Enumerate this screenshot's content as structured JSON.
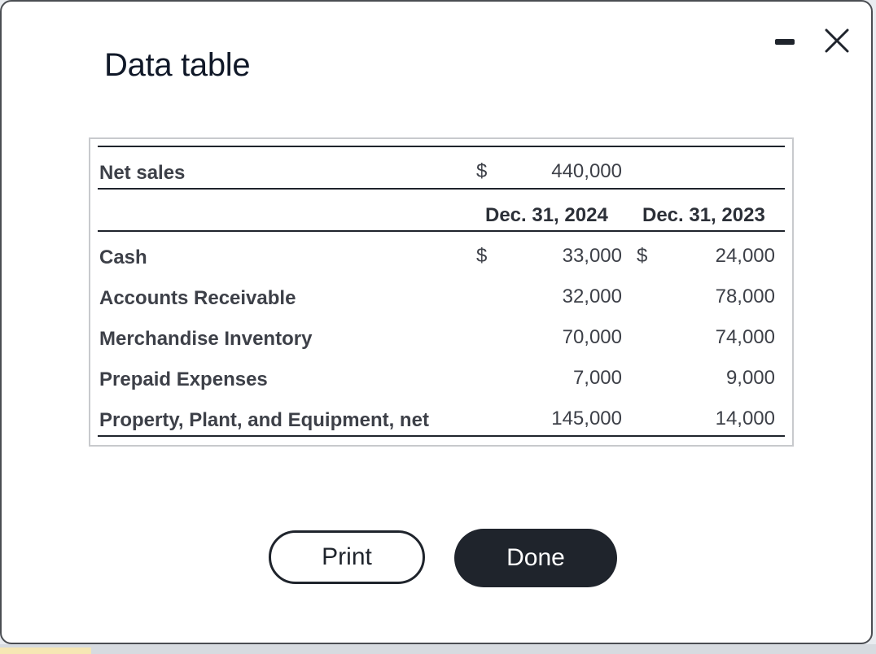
{
  "dialog": {
    "title": "Data table",
    "minimize_icon": "minimize-icon",
    "close_icon": "close-icon"
  },
  "table": {
    "net_sales": {
      "label": "Net sales",
      "currency": "$",
      "value": "440,000"
    },
    "headers": {
      "col_2024": "Dec. 31, 2024",
      "col_2023": "Dec. 31, 2023"
    },
    "rows": [
      {
        "label": "Cash",
        "cur_2024": "$",
        "v2024": "33,000",
        "cur_2023": "$",
        "v2023": "24,000"
      },
      {
        "label": "Accounts Receivable",
        "cur_2024": "",
        "v2024": "32,000",
        "cur_2023": "",
        "v2023": "78,000"
      },
      {
        "label": "Merchandise Inventory",
        "cur_2024": "",
        "v2024": "70,000",
        "cur_2023": "",
        "v2023": "74,000"
      },
      {
        "label": "Prepaid Expenses",
        "cur_2024": "",
        "v2024": "7,000",
        "cur_2023": "",
        "v2023": "9,000"
      },
      {
        "label": "Property, Plant, and Equipment, net",
        "cur_2024": "",
        "v2024": "145,000",
        "cur_2023": "",
        "v2023": "14,000"
      }
    ]
  },
  "buttons": {
    "print_label": "Print",
    "done_label": "Done"
  }
}
